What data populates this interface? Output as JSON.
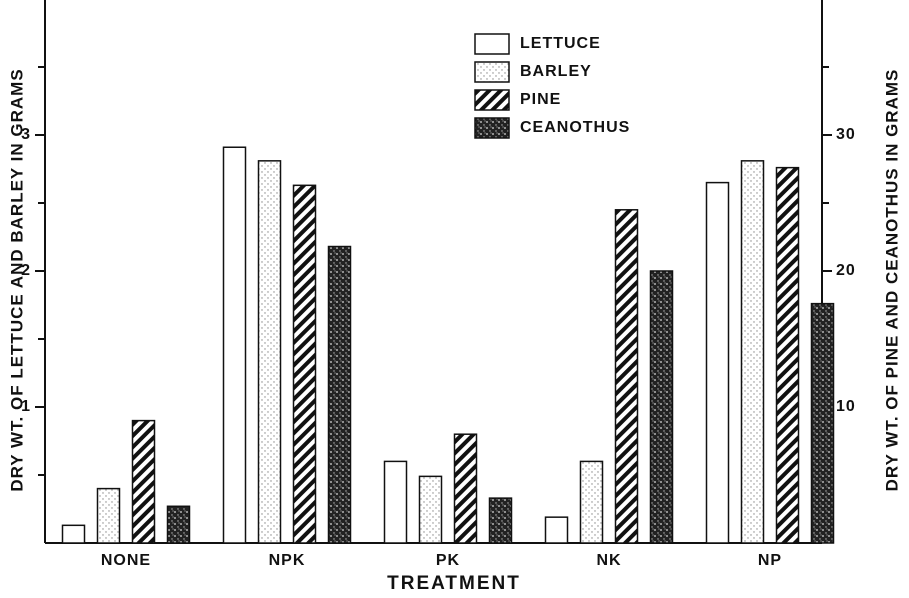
{
  "chart_data": {
    "type": "bar",
    "x_label": "TREATMENT",
    "y_label": "DRY WT. OF LETTUCE AND BARLEY IN GRAMS",
    "y2_label": "DRY WT. OF PINE AND CEANOTHUS IN GRAMS",
    "categories": [
      "NONE",
      "NPK",
      "PK",
      "NK",
      "NP"
    ],
    "series": [
      {
        "name": "LETTUCE",
        "color": "#ffffff",
        "pattern": "plain",
        "values": [
          0.13,
          2.91,
          0.6,
          0.19,
          2.65
        ]
      },
      {
        "name": "BARLEY",
        "color": "#d8d8d8",
        "pattern": "light-stipple",
        "values": [
          0.4,
          2.81,
          0.49,
          0.6,
          2.81
        ]
      },
      {
        "name": "PINE",
        "color": "#111111",
        "pattern": "hatch",
        "values": [
          9,
          26.3,
          8,
          24.5,
          27.6
        ],
        "axis": "y2"
      },
      {
        "name": "CEANOTHUS",
        "color": "#333333",
        "pattern": "dark-stipple",
        "values": [
          2.7,
          21.8,
          3.3,
          20,
          17.6
        ],
        "axis": "y2"
      }
    ],
    "ylim": [
      0,
      4
    ],
    "yticks": [
      1,
      2,
      3
    ],
    "yminorticks": [
      0.5,
      1.5,
      2.5,
      3.5
    ],
    "y2lim": [
      0,
      40
    ],
    "y2ticks": [
      10,
      20,
      30
    ],
    "y2minorticks": [
      5,
      15,
      25,
      35
    ],
    "legend": "top-center"
  }
}
